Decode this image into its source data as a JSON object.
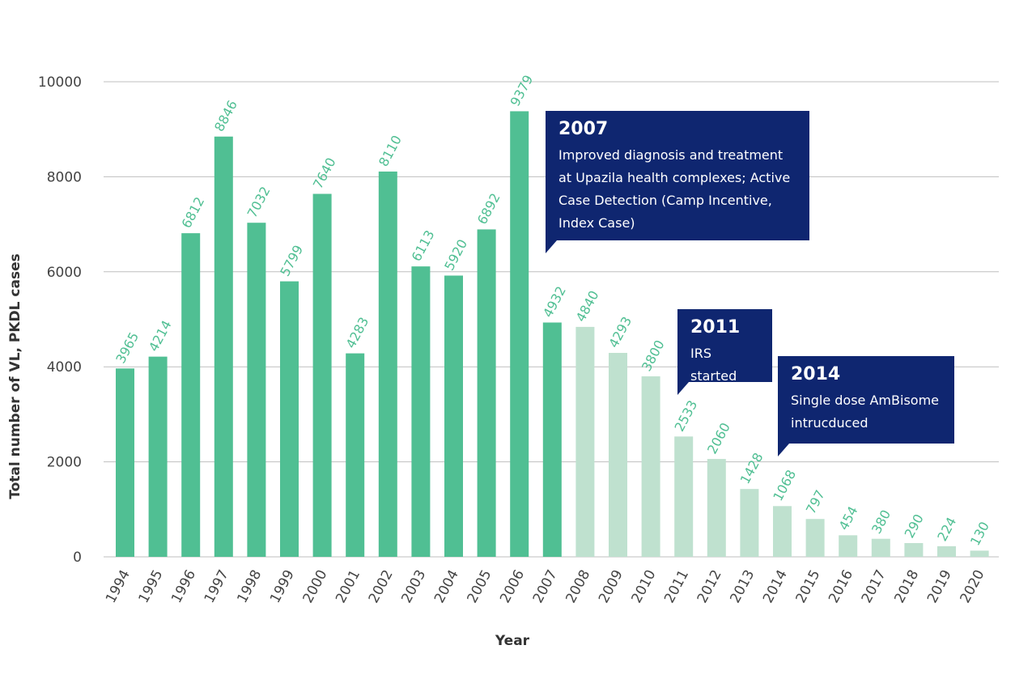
{
  "chart_data": {
    "type": "bar",
    "title": "",
    "xlabel": "Year",
    "ylabel": "Total number of VL, PKDL cases",
    "ylim": [
      0,
      10000
    ],
    "yticks": [
      0,
      2000,
      4000,
      6000,
      8000,
      10000
    ],
    "grid": true,
    "categories": [
      "1994",
      "1995",
      "1996",
      "1997",
      "1998",
      "1999",
      "2000",
      "2001",
      "2002",
      "2003",
      "2004",
      "2005",
      "2006",
      "2007",
      "2008",
      "2009",
      "2010",
      "2011",
      "2012",
      "2013",
      "2014",
      "2015",
      "2016",
      "2017",
      "2018",
      "2019",
      "2020"
    ],
    "values": [
      3965,
      4214,
      6812,
      8846,
      7032,
      5799,
      7640,
      4283,
      8110,
      6113,
      5920,
      6892,
      9379,
      4932,
      4840,
      4293,
      3800,
      2533,
      2060,
      1428,
      1068,
      797,
      454,
      380,
      290,
      224,
      130
    ],
    "colors": {
      "before_2008": "#50bf93",
      "from_2008": "#bfe1cf",
      "label": "#50bf93",
      "callout": "#0f2670"
    },
    "annotations": [
      {
        "year": "2007",
        "text": "Improved diagnosis and treatment at Upazila health complexes; Active Case Detection (Camp Incentive, Index Case)"
      },
      {
        "year": "2011",
        "text": "IRS started"
      },
      {
        "year": "2014",
        "text": "Single dose AmBisome intrucduced"
      }
    ]
  }
}
